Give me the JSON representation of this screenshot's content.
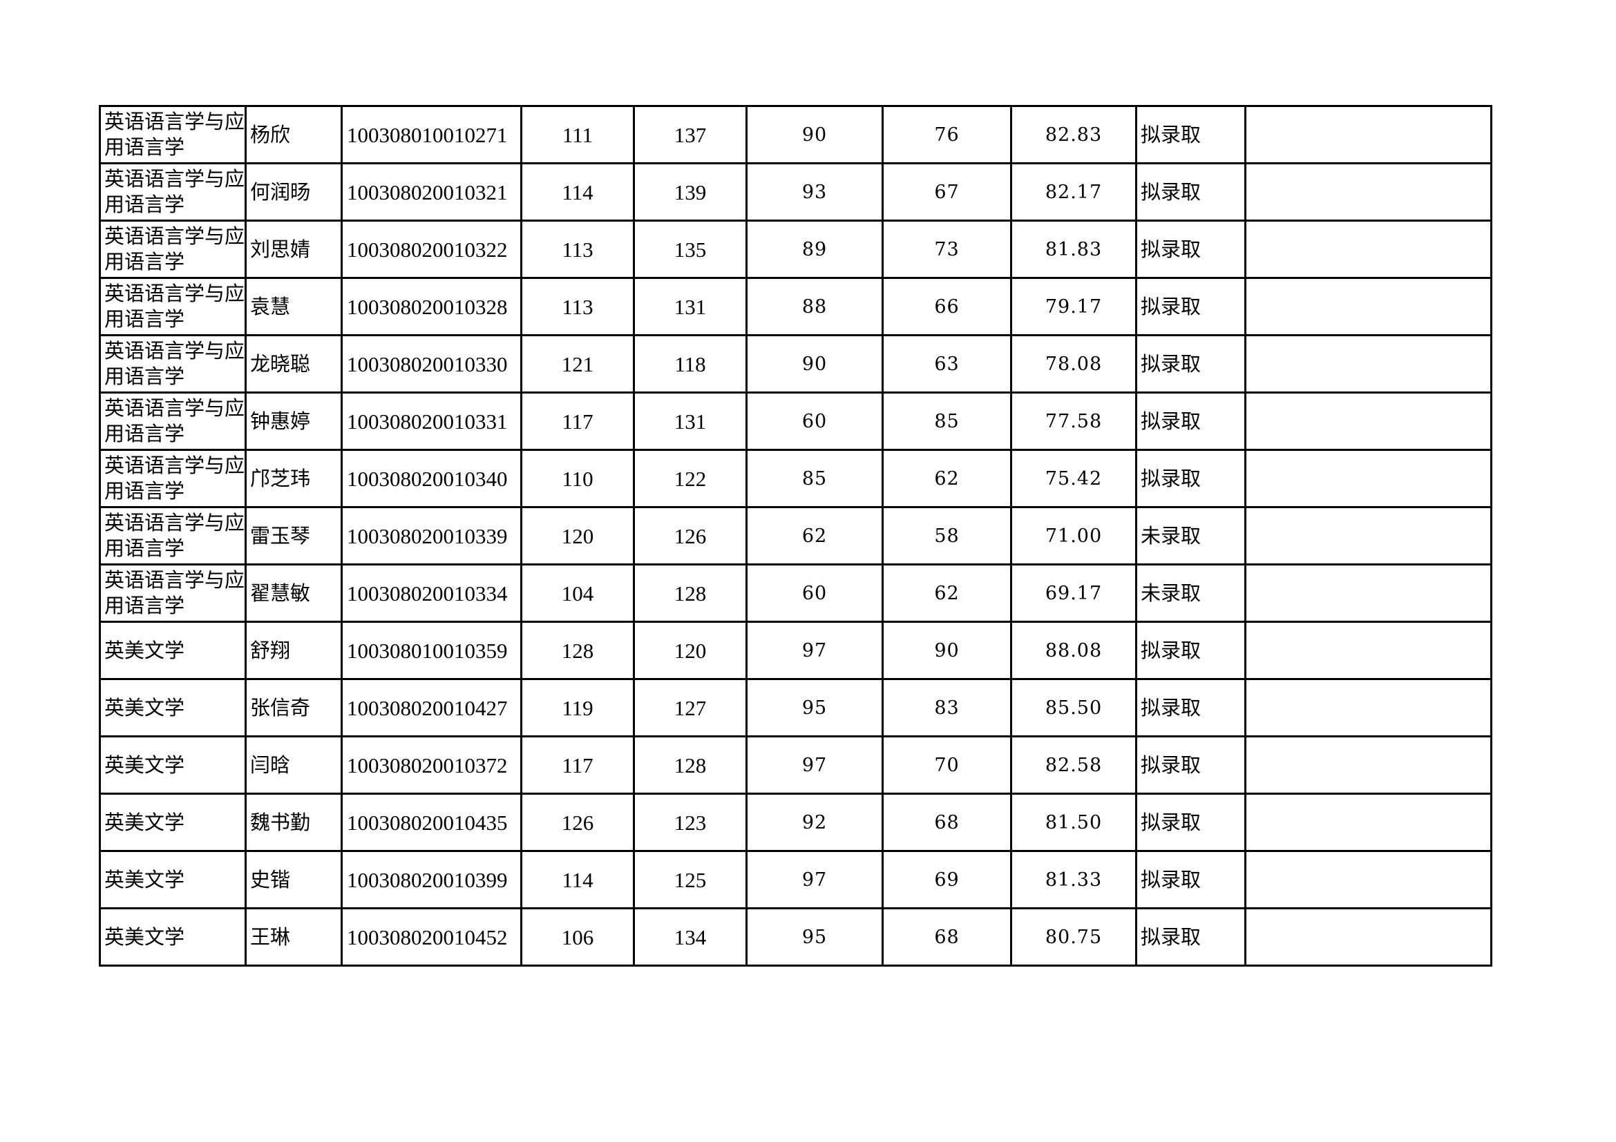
{
  "rows": [
    {
      "major": "英语语言学与应用语言学",
      "name": "杨欣",
      "id": "100308010010271",
      "s1": "111",
      "s2": "137",
      "s3": "90",
      "s4": "76",
      "total": "82.83",
      "status": "拟录取",
      "note": ""
    },
    {
      "major": "英语语言学与应用语言学",
      "name": "何润旸",
      "id": "100308020010321",
      "s1": "114",
      "s2": "139",
      "s3": "93",
      "s4": "67",
      "total": "82.17",
      "status": "拟录取",
      "note": ""
    },
    {
      "major": "英语语言学与应用语言学",
      "name": "刘思婧",
      "id": "100308020010322",
      "s1": "113",
      "s2": "135",
      "s3": "89",
      "s4": "73",
      "total": "81.83",
      "status": "拟录取",
      "note": ""
    },
    {
      "major": "英语语言学与应用语言学",
      "name": "袁慧",
      "id": "100308020010328",
      "s1": "113",
      "s2": "131",
      "s3": "88",
      "s4": "66",
      "total": "79.17",
      "status": "拟录取",
      "note": ""
    },
    {
      "major": "英语语言学与应用语言学",
      "name": "龙晓聪",
      "id": "100308020010330",
      "s1": "121",
      "s2": "118",
      "s3": "90",
      "s4": "63",
      "total": "78.08",
      "status": "拟录取",
      "note": ""
    },
    {
      "major": "英语语言学与应用语言学",
      "name": "钟惠婷",
      "id": "100308020010331",
      "s1": "117",
      "s2": "131",
      "s3": "60",
      "s4": "85",
      "total": "77.58",
      "status": "拟录取",
      "note": ""
    },
    {
      "major": "英语语言学与应用语言学",
      "name": "邝芝玮",
      "id": "100308020010340",
      "s1": "110",
      "s2": "122",
      "s3": "85",
      "s4": "62",
      "total": "75.42",
      "status": "拟录取",
      "note": ""
    },
    {
      "major": "英语语言学与应用语言学",
      "name": "雷玉琴",
      "id": "100308020010339",
      "s1": "120",
      "s2": "126",
      "s3": "62",
      "s4": "58",
      "total": "71.00",
      "status": "未录取",
      "note": ""
    },
    {
      "major": "英语语言学与应用语言学",
      "name": "翟慧敏",
      "id": "100308020010334",
      "s1": "104",
      "s2": "128",
      "s3": "60",
      "s4": "62",
      "total": "69.17",
      "status": "未录取",
      "note": ""
    },
    {
      "major": "英美文学",
      "name": "舒翔",
      "id": "100308010010359",
      "s1": "128",
      "s2": "120",
      "s3": "97",
      "s4": "90",
      "total": "88.08",
      "status": "拟录取",
      "note": ""
    },
    {
      "major": "英美文学",
      "name": "张信奇",
      "id": "100308020010427",
      "s1": "119",
      "s2": "127",
      "s3": "95",
      "s4": "83",
      "total": "85.50",
      "status": "拟录取",
      "note": ""
    },
    {
      "major": "英美文学",
      "name": "闫晗",
      "id": "100308020010372",
      "s1": "117",
      "s2": "128",
      "s3": "97",
      "s4": "70",
      "total": "82.58",
      "status": "拟录取",
      "note": ""
    },
    {
      "major": "英美文学",
      "name": "魏书勤",
      "id": "100308020010435",
      "s1": "126",
      "s2": "123",
      "s3": "92",
      "s4": "68",
      "total": "81.50",
      "status": "拟录取",
      "note": ""
    },
    {
      "major": "英美文学",
      "name": "史锴",
      "id": "100308020010399",
      "s1": "114",
      "s2": "125",
      "s3": "97",
      "s4": "69",
      "total": "81.33",
      "status": "拟录取",
      "note": ""
    },
    {
      "major": "英美文学",
      "name": "王琳",
      "id": "100308020010452",
      "s1": "106",
      "s2": "134",
      "s3": "95",
      "s4": "68",
      "total": "80.75",
      "status": "拟录取",
      "note": ""
    }
  ]
}
